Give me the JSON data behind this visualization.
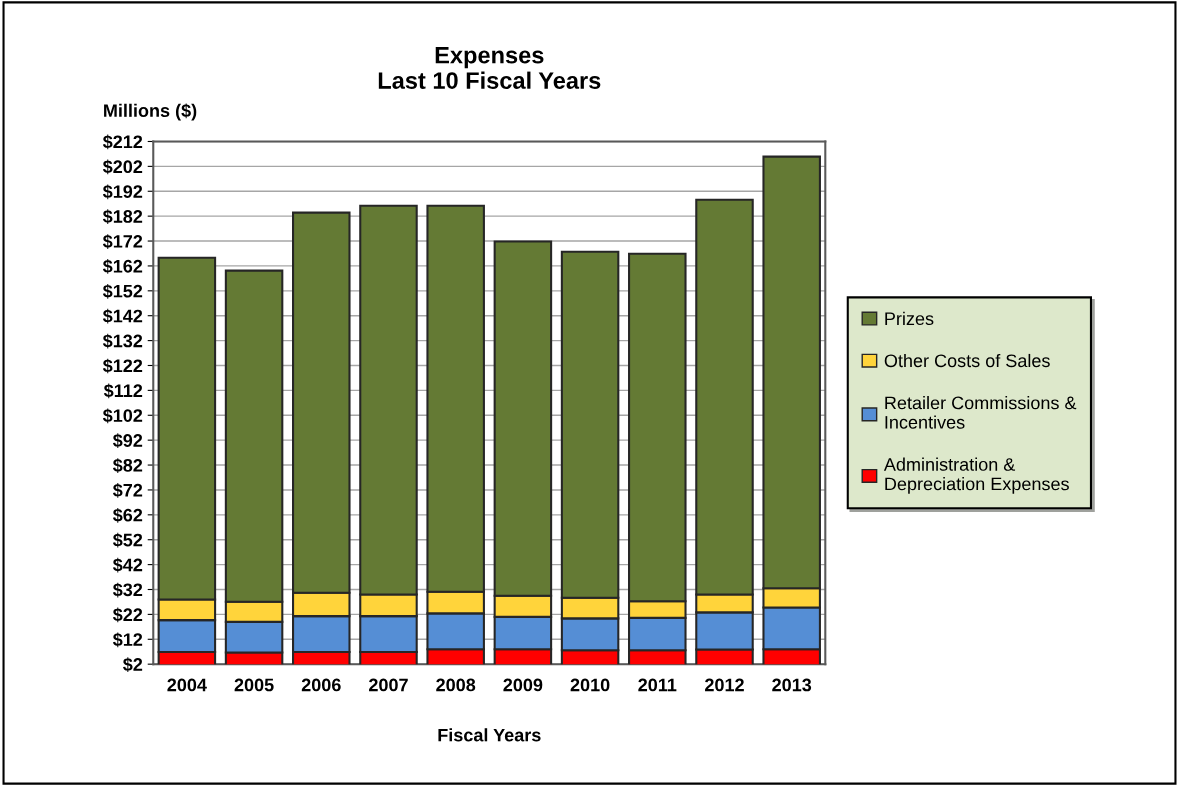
{
  "chart_data": {
    "type": "bar",
    "title": "Expenses\nLast 10 Fiscal Years",
    "xlabel": "Fiscal Years",
    "ylabel": "Millions ($)",
    "categories": [
      "2004",
      "2005",
      "2006",
      "2007",
      "2008",
      "2009",
      "2010",
      "2011",
      "2012",
      "2013"
    ],
    "stacked": true,
    "series": [
      {
        "name": "Administration & Depreciation Expenses",
        "color": "#ff0000",
        "values": [
          6.9,
          6.7,
          6.9,
          6.9,
          8.0,
          8.0,
          7.6,
          7.6,
          7.9,
          8.0
        ]
      },
      {
        "name": "Retailer Commissions & Incentives",
        "color": "#558ed5",
        "values": [
          12.8,
          12.3,
          14.4,
          14.4,
          14.4,
          13.0,
          12.8,
          13.0,
          14.9,
          16.8
        ]
      },
      {
        "name": "Other Costs of Sales",
        "color": "#ffd43b",
        "values": [
          8.3,
          8.1,
          9.4,
          8.7,
          8.7,
          8.5,
          8.3,
          6.7,
          7.2,
          7.7
        ]
      },
      {
        "name": "Prizes",
        "color": "#647a34",
        "values": [
          137.3,
          133.0,
          152.7,
          156.2,
          155.1,
          142.3,
          139.0,
          139.6,
          158.6,
          173.4
        ]
      }
    ],
    "ylim": [
      2,
      212
    ],
    "yticks": [
      {
        "value": 2,
        "label": "$2"
      },
      {
        "value": 12,
        "label": "$12"
      },
      {
        "value": 22,
        "label": "$22"
      },
      {
        "value": 32,
        "label": "$32"
      },
      {
        "value": 42,
        "label": "$42"
      },
      {
        "value": 52,
        "label": "$52"
      },
      {
        "value": 62,
        "label": "$62"
      },
      {
        "value": 72,
        "label": "$72"
      },
      {
        "value": 82,
        "label": "$82"
      },
      {
        "value": 92,
        "label": "$92"
      },
      {
        "value": 102,
        "label": "$102"
      },
      {
        "value": 112,
        "label": "$112"
      },
      {
        "value": 122,
        "label": "$122"
      },
      {
        "value": 132,
        "label": "$132"
      },
      {
        "value": 142,
        "label": "$142"
      },
      {
        "value": 152,
        "label": "$152"
      },
      {
        "value": 162,
        "label": "$162"
      },
      {
        "value": 172,
        "label": "$172"
      },
      {
        "value": 182,
        "label": "$182"
      },
      {
        "value": 192,
        "label": "$192"
      },
      {
        "value": 202,
        "label": "$202"
      },
      {
        "value": 212,
        "label": "$212"
      }
    ],
    "grid": "y",
    "legend": "right"
  }
}
